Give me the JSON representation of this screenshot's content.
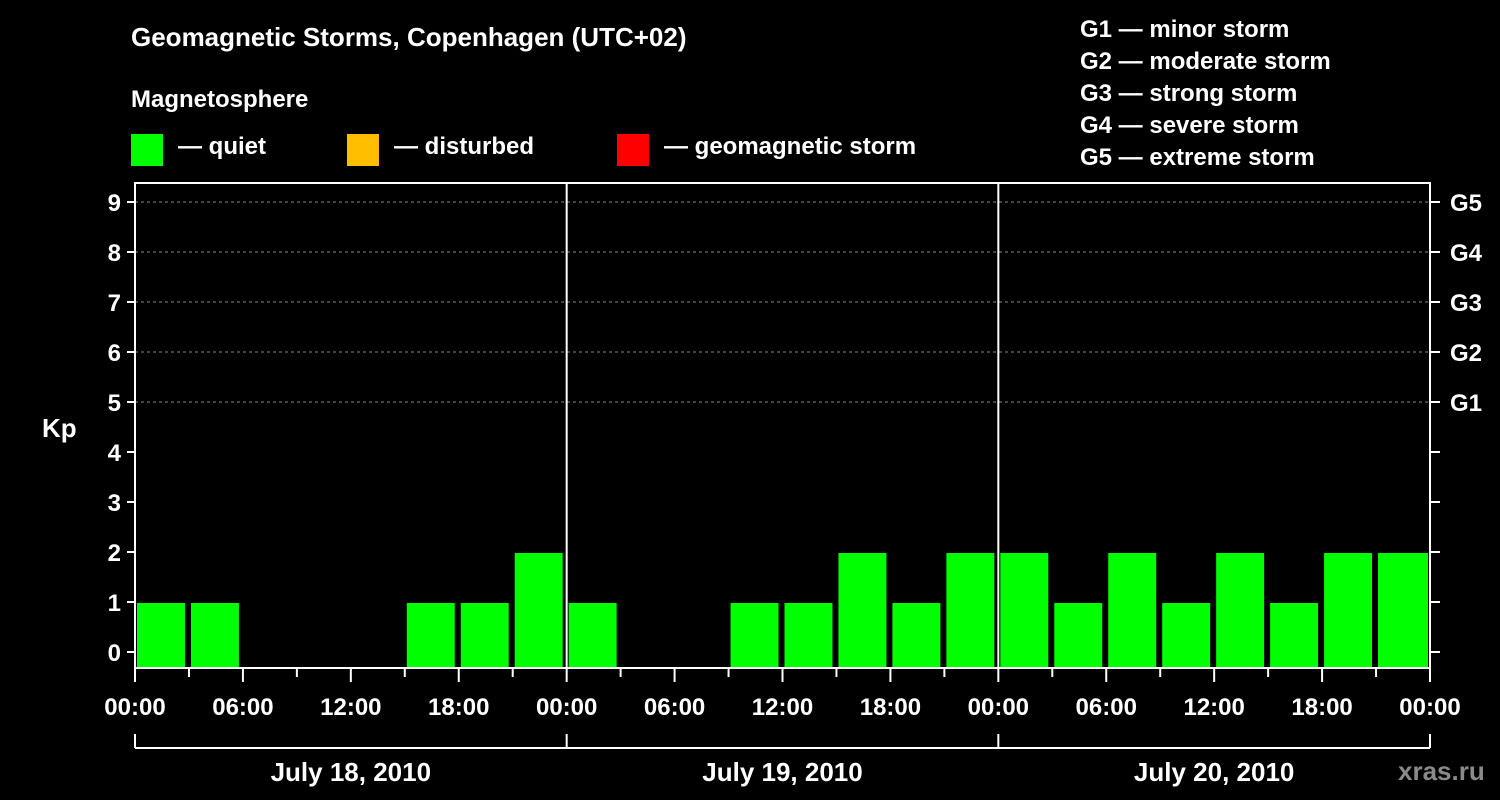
{
  "chart_data": {
    "type": "bar",
    "title": "Geomagnetic Storms, Copenhagen (UTC+02)",
    "subtitle": "Magnetosphere",
    "ylabel": "Kp",
    "ylim": [
      0,
      9
    ],
    "yticks": [
      "0",
      "1",
      "2",
      "3",
      "4",
      "5",
      "6",
      "7",
      "8",
      "9"
    ],
    "right_axis_labels": [
      {
        "kp": 5,
        "label": "G1"
      },
      {
        "kp": 6,
        "label": "G2"
      },
      {
        "kp": 7,
        "label": "G3"
      },
      {
        "kp": 8,
        "label": "G4"
      },
      {
        "kp": 9,
        "label": "G5"
      }
    ],
    "x_range_hours": [
      0,
      72
    ],
    "xtick_labels": [
      "00:00",
      "06:00",
      "12:00",
      "18:00",
      "00:00",
      "06:00",
      "12:00",
      "18:00",
      "00:00",
      "06:00",
      "12:00",
      "18:00",
      "00:00"
    ],
    "dates": [
      "July 18, 2010",
      "July 19, 2010",
      "July 20, 2010"
    ],
    "categories": [
      "0-3h",
      "3-6h",
      "6-9h",
      "9-12h",
      "12-15h",
      "15-18h",
      "18-21h",
      "21-24h",
      "24-27h",
      "27-30h",
      "30-33h",
      "33-36h",
      "36-39h",
      "39-42h",
      "42-45h",
      "45-48h",
      "48-51h",
      "51-54h",
      "54-57h",
      "57-60h",
      "60-63h",
      "63-66h",
      "66-69h",
      "69-72h"
    ],
    "values": [
      1,
      1,
      0,
      0,
      0,
      1,
      1,
      2,
      1,
      0,
      0,
      1,
      1,
      2,
      1,
      2,
      2,
      1,
      2,
      1,
      2,
      1,
      2,
      2
    ],
    "bar_color": "#00ff00",
    "legend": [
      {
        "label": "— quiet",
        "color": "#00ff00"
      },
      {
        "label": "— disturbed",
        "color": "#ffbf00"
      },
      {
        "label": "— geomagnetic storm",
        "color": "#ff0000"
      }
    ],
    "storm_scale": [
      "G1 — minor storm",
      "G2 — moderate storm",
      "G3 — strong storm",
      "G4 — severe storm",
      "G5 — extreme storm"
    ]
  },
  "watermark": "xras.ru"
}
